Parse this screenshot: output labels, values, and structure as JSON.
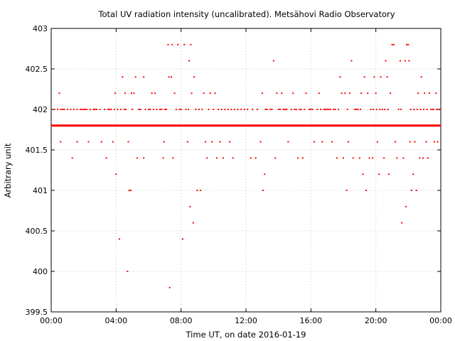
{
  "chart_data": {
    "type": "scatter",
    "title": "Total UV radiation intensity (uncalibrated). Metsähovi Radio Observatory",
    "xlabel": "Time UT, on date 2016-01-19",
    "ylabel": "Arbitrary unit",
    "x_ticks": [
      "00:00",
      "04:00",
      "08:00",
      "12:00",
      "16:00",
      "20:00",
      "00:00"
    ],
    "x_tick_hours": [
      0,
      4,
      8,
      12,
      16,
      20,
      24
    ],
    "xlim_hours": [
      0,
      24
    ],
    "y_ticks": [
      "399.5",
      "400",
      "400.5",
      "401",
      "401.5",
      "402",
      "402.5",
      "403"
    ],
    "ylim": [
      399.5,
      403
    ],
    "grid": true,
    "legend": "none",
    "color": "#ff0000",
    "baseline": {
      "y": 401.8,
      "x_start_hours": 0,
      "x_end_hours": 24,
      "note_continuous": true
    },
    "points": [
      {
        "x": 0.5,
        "y": 402.2
      },
      {
        "x": 0.58,
        "y": 401.6
      },
      {
        "x": 0.2,
        "y": 402.0
      },
      {
        "x": 0.7,
        "y": 402.0
      },
      {
        "x": 1.3,
        "y": 401.4
      },
      {
        "x": 1.6,
        "y": 401.6
      },
      {
        "x": 1.9,
        "y": 402.0
      },
      {
        "x": 2.3,
        "y": 401.6
      },
      {
        "x": 2.7,
        "y": 402.0
      },
      {
        "x": 3.1,
        "y": 401.6
      },
      {
        "x": 3.4,
        "y": 401.4
      },
      {
        "x": 3.7,
        "y": 402.0
      },
      {
        "x": 3.8,
        "y": 401.6
      },
      {
        "x": 3.95,
        "y": 402.2
      },
      {
        "x": 4.0,
        "y": 401.2
      },
      {
        "x": 4.2,
        "y": 400.4
      },
      {
        "x": 4.4,
        "y": 402.4
      },
      {
        "x": 4.55,
        "y": 402.2
      },
      {
        "x": 4.7,
        "y": 400.0
      },
      {
        "x": 4.75,
        "y": 401.6
      },
      {
        "x": 4.8,
        "y": 401.0
      },
      {
        "x": 4.9,
        "y": 401.0
      },
      {
        "x": 4.95,
        "y": 402.2
      },
      {
        "x": 5.1,
        "y": 402.2
      },
      {
        "x": 5.2,
        "y": 402.4
      },
      {
        "x": 5.3,
        "y": 401.4
      },
      {
        "x": 5.7,
        "y": 402.4
      },
      {
        "x": 5.7,
        "y": 401.4
      },
      {
        "x": 6.2,
        "y": 402.2
      },
      {
        "x": 6.4,
        "y": 402.2
      },
      {
        "x": 6.9,
        "y": 401.4
      },
      {
        "x": 6.95,
        "y": 401.6
      },
      {
        "x": 7.2,
        "y": 402.8
      },
      {
        "x": 7.25,
        "y": 402.4
      },
      {
        "x": 7.3,
        "y": 399.8
      },
      {
        "x": 7.4,
        "y": 402.4
      },
      {
        "x": 7.45,
        "y": 402.8
      },
      {
        "x": 7.5,
        "y": 401.4
      },
      {
        "x": 7.6,
        "y": 402.2
      },
      {
        "x": 7.8,
        "y": 402.8
      },
      {
        "x": 8.1,
        "y": 400.4
      },
      {
        "x": 8.2,
        "y": 402.8
      },
      {
        "x": 8.4,
        "y": 401.6
      },
      {
        "x": 8.5,
        "y": 402.6
      },
      {
        "x": 8.55,
        "y": 400.8
      },
      {
        "x": 8.6,
        "y": 402.8
      },
      {
        "x": 8.65,
        "y": 402.2
      },
      {
        "x": 8.75,
        "y": 400.6
      },
      {
        "x": 8.8,
        "y": 402.4
      },
      {
        "x": 9.0,
        "y": 401.0
      },
      {
        "x": 9.2,
        "y": 401.0
      },
      {
        "x": 9.4,
        "y": 402.2
      },
      {
        "x": 9.5,
        "y": 401.6
      },
      {
        "x": 9.6,
        "y": 401.4
      },
      {
        "x": 9.8,
        "y": 402.2
      },
      {
        "x": 9.9,
        "y": 401.6
      },
      {
        "x": 10.1,
        "y": 402.2
      },
      {
        "x": 10.2,
        "y": 401.4
      },
      {
        "x": 10.4,
        "y": 401.6
      },
      {
        "x": 10.6,
        "y": 401.4
      },
      {
        "x": 11.0,
        "y": 401.6
      },
      {
        "x": 11.2,
        "y": 401.4
      },
      {
        "x": 12.3,
        "y": 401.4
      },
      {
        "x": 12.6,
        "y": 401.4
      },
      {
        "x": 12.9,
        "y": 401.6
      },
      {
        "x": 13.0,
        "y": 402.2
      },
      {
        "x": 13.05,
        "y": 401.0
      },
      {
        "x": 13.15,
        "y": 401.2
      },
      {
        "x": 13.2,
        "y": 402.0
      },
      {
        "x": 13.7,
        "y": 402.6
      },
      {
        "x": 13.8,
        "y": 401.4
      },
      {
        "x": 13.9,
        "y": 402.2
      },
      {
        "x": 14.2,
        "y": 402.2
      },
      {
        "x": 14.6,
        "y": 401.6
      },
      {
        "x": 14.9,
        "y": 402.2
      },
      {
        "x": 15.2,
        "y": 401.4
      },
      {
        "x": 15.5,
        "y": 401.4
      },
      {
        "x": 15.7,
        "y": 402.2
      },
      {
        "x": 16.2,
        "y": 401.6
      },
      {
        "x": 16.5,
        "y": 402.2
      },
      {
        "x": 16.7,
        "y": 401.6
      },
      {
        "x": 17.0,
        "y": 402.0
      },
      {
        "x": 17.3,
        "y": 401.6
      },
      {
        "x": 17.6,
        "y": 401.4
      },
      {
        "x": 17.8,
        "y": 402.4
      },
      {
        "x": 17.9,
        "y": 402.2
      },
      {
        "x": 18.0,
        "y": 401.4
      },
      {
        "x": 18.1,
        "y": 402.2
      },
      {
        "x": 18.2,
        "y": 401.0
      },
      {
        "x": 18.3,
        "y": 401.6
      },
      {
        "x": 18.4,
        "y": 402.2
      },
      {
        "x": 18.5,
        "y": 402.6
      },
      {
        "x": 18.6,
        "y": 401.4
      },
      {
        "x": 18.8,
        "y": 402.0
      },
      {
        "x": 19.0,
        "y": 401.4
      },
      {
        "x": 19.1,
        "y": 402.2
      },
      {
        "x": 19.2,
        "y": 401.2
      },
      {
        "x": 19.3,
        "y": 402.4
      },
      {
        "x": 19.4,
        "y": 401.0
      },
      {
        "x": 19.5,
        "y": 402.2
      },
      {
        "x": 19.6,
        "y": 401.4
      },
      {
        "x": 19.8,
        "y": 401.4
      },
      {
        "x": 19.9,
        "y": 402.4
      },
      {
        "x": 20.0,
        "y": 402.2
      },
      {
        "x": 20.1,
        "y": 401.6
      },
      {
        "x": 20.2,
        "y": 401.2
      },
      {
        "x": 20.3,
        "y": 402.4
      },
      {
        "x": 20.5,
        "y": 401.4
      },
      {
        "x": 20.6,
        "y": 402.6
      },
      {
        "x": 20.7,
        "y": 402.4
      },
      {
        "x": 20.8,
        "y": 401.2
      },
      {
        "x": 20.9,
        "y": 402.2
      },
      {
        "x": 21.0,
        "y": 402.8
      },
      {
        "x": 21.1,
        "y": 402.8
      },
      {
        "x": 21.2,
        "y": 401.6
      },
      {
        "x": 21.3,
        "y": 401.4
      },
      {
        "x": 21.5,
        "y": 402.6
      },
      {
        "x": 21.6,
        "y": 400.6
      },
      {
        "x": 21.7,
        "y": 401.4
      },
      {
        "x": 21.8,
        "y": 402.6
      },
      {
        "x": 21.85,
        "y": 400.8
      },
      {
        "x": 21.9,
        "y": 402.8
      },
      {
        "x": 22.0,
        "y": 402.8
      },
      {
        "x": 22.05,
        "y": 402.6
      },
      {
        "x": 22.1,
        "y": 401.6
      },
      {
        "x": 22.2,
        "y": 401.0
      },
      {
        "x": 22.3,
        "y": 401.2
      },
      {
        "x": 22.4,
        "y": 401.6
      },
      {
        "x": 22.5,
        "y": 401.0
      },
      {
        "x": 22.6,
        "y": 402.2
      },
      {
        "x": 22.7,
        "y": 401.4
      },
      {
        "x": 22.8,
        "y": 402.4
      },
      {
        "x": 22.9,
        "y": 401.4
      },
      {
        "x": 23.0,
        "y": 402.2
      },
      {
        "x": 23.1,
        "y": 401.6
      },
      {
        "x": 23.2,
        "y": 401.4
      },
      {
        "x": 23.3,
        "y": 402.2
      },
      {
        "x": 23.5,
        "y": 402.0
      },
      {
        "x": 23.6,
        "y": 401.6
      },
      {
        "x": 23.7,
        "y": 402.2
      },
      {
        "x": 23.8,
        "y": 401.6
      },
      {
        "x": 23.9,
        "y": 402.0
      }
    ],
    "dense_band_y": 402.0,
    "dense_band_hours": [
      0.2,
      0.4,
      0.6,
      0.8,
      1.0,
      1.2,
      1.4,
      1.6,
      1.8,
      2.0,
      2.1,
      2.2,
      2.4,
      2.6,
      2.8,
      3.0,
      3.3,
      3.5,
      3.6,
      3.9,
      4.1,
      4.3,
      4.5,
      4.6,
      5.0,
      5.4,
      5.5,
      5.8,
      6.0,
      6.1,
      6.3,
      6.5,
      6.7,
      6.8,
      7.0,
      7.1,
      7.7,
      7.9,
      8.0,
      8.3,
      8.45,
      8.9,
      9.1,
      9.3,
      9.7,
      10.0,
      10.3,
      10.5,
      10.7,
      10.9,
      11.1,
      11.3,
      11.5,
      11.7,
      11.9,
      12.1,
      12.4,
      12.7,
      13.3,
      13.5,
      13.6,
      14.0,
      14.1,
      14.3,
      14.4,
      14.5,
      14.8,
      15.0,
      15.1,
      15.3,
      15.4,
      15.6,
      15.9,
      16.0,
      16.1,
      16.4,
      16.6,
      16.8,
      16.9,
      17.1,
      17.2,
      17.4,
      17.5,
      17.7,
      18.25,
      18.7,
      18.9,
      19.05,
      19.7,
      19.85,
      20.05,
      20.25,
      20.4,
      20.55,
      20.75,
      21.4,
      21.55,
      22.15,
      22.35,
      22.55,
      22.75,
      22.95,
      23.15,
      23.4,
      23.55,
      23.75
    ]
  }
}
